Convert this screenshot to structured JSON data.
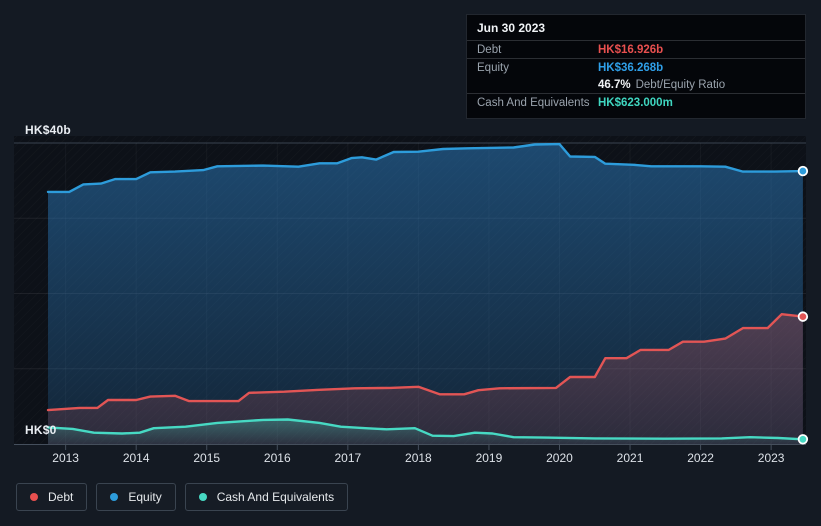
{
  "colors": {
    "background": "#141a23",
    "plot_background": "#0d1118",
    "debt": "#e25555",
    "equity": "#2d9cdb",
    "cash": "#47d9c3",
    "gridline": "#39434f",
    "axis_text": "#dde2e8"
  },
  "axis_labels": {
    "top": "HK$40b",
    "zero": "HK$0"
  },
  "tooltip": {
    "date": "Jun 30 2023",
    "debt_label": "Debt",
    "debt_value": "HK$16.926b",
    "equity_label": "Equity",
    "equity_value": "HK$36.268b",
    "ratio_value": "46.7%",
    "ratio_label": "Debt/Equity Ratio",
    "cash_label": "Cash And Equivalents",
    "cash_value": "HK$623.000m"
  },
  "legend": {
    "items": [
      {
        "label": "Debt",
        "color": "#e8504f"
      },
      {
        "label": "Equity",
        "color": "#2d9cdb"
      },
      {
        "label": "Cash And Equivalents",
        "color": "#47d9c3"
      }
    ]
  },
  "chart_data": {
    "type": "area",
    "title": "Debt to Equity history",
    "x_axis_years": [
      2013,
      2014,
      2015,
      2016,
      2017,
      2018,
      2019,
      2020,
      2021,
      2022,
      2023
    ],
    "x_range": [
      2012.75,
      2023.5
    ],
    "ylim": [
      0,
      40
    ],
    "y_unit": "HK$ billions",
    "y_gridlines": [
      40,
      30,
      20,
      10,
      0
    ],
    "legend_position": "bottom-left",
    "grid": true,
    "series": [
      {
        "name": "Equity",
        "color": "#2d9cdb",
        "points": [
          [
            2012.75,
            33.5
          ],
          [
            2013.05,
            33.5
          ],
          [
            2013.25,
            34.5
          ],
          [
            2013.5,
            34.6
          ],
          [
            2013.7,
            35.2
          ],
          [
            2014.0,
            35.2
          ],
          [
            2014.2,
            36.1
          ],
          [
            2014.55,
            36.2
          ],
          [
            2014.95,
            36.4
          ],
          [
            2015.15,
            36.9
          ],
          [
            2015.8,
            37.0
          ],
          [
            2016.3,
            36.85
          ],
          [
            2016.6,
            37.3
          ],
          [
            2016.85,
            37.3
          ],
          [
            2017.05,
            38.0
          ],
          [
            2017.2,
            38.1
          ],
          [
            2017.4,
            37.8
          ],
          [
            2017.65,
            38.8
          ],
          [
            2018.0,
            38.85
          ],
          [
            2018.35,
            39.2
          ],
          [
            2018.7,
            39.3
          ],
          [
            2019.35,
            39.4
          ],
          [
            2019.65,
            39.8
          ],
          [
            2020.0,
            39.85
          ],
          [
            2020.15,
            38.2
          ],
          [
            2020.5,
            38.15
          ],
          [
            2020.65,
            37.25
          ],
          [
            2021.05,
            37.1
          ],
          [
            2021.3,
            36.9
          ],
          [
            2022.0,
            36.9
          ],
          [
            2022.35,
            36.85
          ],
          [
            2022.6,
            36.2
          ],
          [
            2023.05,
            36.2
          ],
          [
            2023.45,
            36.268
          ]
        ]
      },
      {
        "name": "Debt",
        "color": "#e25555",
        "points": [
          [
            2012.75,
            4.5
          ],
          [
            2013.2,
            4.8
          ],
          [
            2013.45,
            4.8
          ],
          [
            2013.6,
            5.85
          ],
          [
            2014.0,
            5.85
          ],
          [
            2014.2,
            6.3
          ],
          [
            2014.55,
            6.4
          ],
          [
            2014.75,
            5.7
          ],
          [
            2015.45,
            5.7
          ],
          [
            2015.6,
            6.8
          ],
          [
            2016.1,
            6.95
          ],
          [
            2016.6,
            7.2
          ],
          [
            2017.1,
            7.4
          ],
          [
            2017.6,
            7.45
          ],
          [
            2018.0,
            7.6
          ],
          [
            2018.3,
            6.6
          ],
          [
            2018.65,
            6.6
          ],
          [
            2018.85,
            7.15
          ],
          [
            2019.15,
            7.4
          ],
          [
            2019.95,
            7.45
          ],
          [
            2020.15,
            8.9
          ],
          [
            2020.5,
            8.9
          ],
          [
            2020.65,
            11.4
          ],
          [
            2020.95,
            11.4
          ],
          [
            2021.15,
            12.5
          ],
          [
            2021.55,
            12.5
          ],
          [
            2021.75,
            13.6
          ],
          [
            2022.05,
            13.6
          ],
          [
            2022.35,
            14.0
          ],
          [
            2022.6,
            15.4
          ],
          [
            2022.95,
            15.4
          ],
          [
            2023.15,
            17.25
          ],
          [
            2023.45,
            16.926
          ]
        ]
      },
      {
        "name": "Cash And Equivalents",
        "color": "#47d9c3",
        "points": [
          [
            2012.75,
            2.2
          ],
          [
            2013.1,
            2.0
          ],
          [
            2013.4,
            1.5
          ],
          [
            2013.8,
            1.4
          ],
          [
            2014.05,
            1.5
          ],
          [
            2014.25,
            2.1
          ],
          [
            2014.7,
            2.3
          ],
          [
            2015.15,
            2.8
          ],
          [
            2015.8,
            3.2
          ],
          [
            2016.15,
            3.25
          ],
          [
            2016.6,
            2.8
          ],
          [
            2016.9,
            2.3
          ],
          [
            2017.25,
            2.1
          ],
          [
            2017.55,
            1.95
          ],
          [
            2017.95,
            2.1
          ],
          [
            2018.2,
            1.1
          ],
          [
            2018.5,
            1.05
          ],
          [
            2018.8,
            1.5
          ],
          [
            2019.05,
            1.4
          ],
          [
            2019.35,
            0.9
          ],
          [
            2019.8,
            0.85
          ],
          [
            2020.5,
            0.75
          ],
          [
            2021.5,
            0.7
          ],
          [
            2022.3,
            0.75
          ],
          [
            2022.7,
            0.9
          ],
          [
            2023.1,
            0.8
          ],
          [
            2023.45,
            0.623
          ]
        ]
      }
    ]
  }
}
